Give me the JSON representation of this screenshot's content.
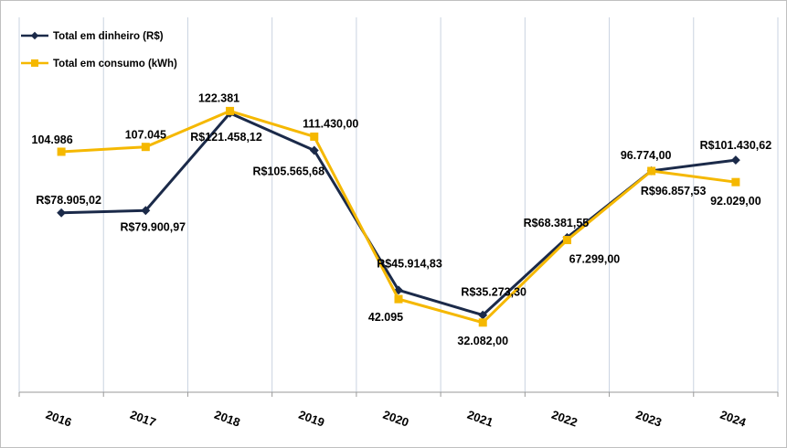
{
  "chart_data": {
    "type": "line",
    "title": "",
    "xlabel": "",
    "ylabel": "",
    "categories": [
      "2016",
      "2017",
      "2018",
      "2019",
      "2020",
      "2021",
      "2022",
      "2023",
      "2024"
    ],
    "grid": "vertical",
    "legend_position": "top-left",
    "series": [
      {
        "name": "Total em dinheiro (R$)",
        "color": "#1b2a49",
        "marker": "diamond",
        "values": [
          78905.02,
          79900.97,
          121458.12,
          105565.68,
          45914.83,
          35273.3,
          68381.55,
          96857.53,
          101430.62
        ],
        "labels": [
          "R$78.905,02",
          "R$79.900,97",
          "R$121.458,12",
          "R$105.565,68",
          "R$45.914,83",
          "R$35.273,30",
          "R$68.381,55",
          "R$96.857,53",
          "R$101.430,62"
        ]
      },
      {
        "name": "Total em consumo (kWh)",
        "color": "#f5b800",
        "marker": "square",
        "values": [
          104986,
          107045,
          122381,
          111430.0,
          42095,
          32082.0,
          67299.0,
          96774.0,
          92029.0
        ],
        "labels": [
          "104.986",
          "107.045",
          "122.381",
          "111.430,00",
          "42.095",
          "32.082,00",
          "67.299,00",
          "96.774,00",
          "92.029,00"
        ]
      }
    ]
  }
}
